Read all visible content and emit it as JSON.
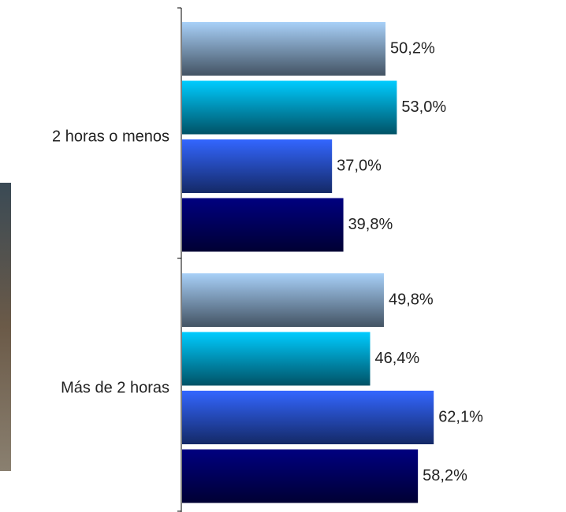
{
  "chart_data": {
    "type": "bar",
    "orientation": "horizontal",
    "categories": [
      "2 horas o menos",
      "Más de 2 horas"
    ],
    "series": [
      {
        "color": "#a8d0f8",
        "values": [
          50.2,
          49.8
        ],
        "value_labels": [
          "50,2%",
          "49,8%"
        ]
      },
      {
        "color": "#00ccff",
        "values": [
          53.0,
          46.4
        ],
        "value_labels": [
          "53,0%",
          "46,4%"
        ]
      },
      {
        "color": "#3366ff",
        "values": [
          37.0,
          62.1
        ],
        "value_labels": [
          "37,0%",
          "62,1%"
        ]
      },
      {
        "color": "#000080",
        "values": [
          39.8,
          58.2
        ],
        "value_labels": [
          "39,8%",
          "58,2%"
        ]
      }
    ]
  }
}
